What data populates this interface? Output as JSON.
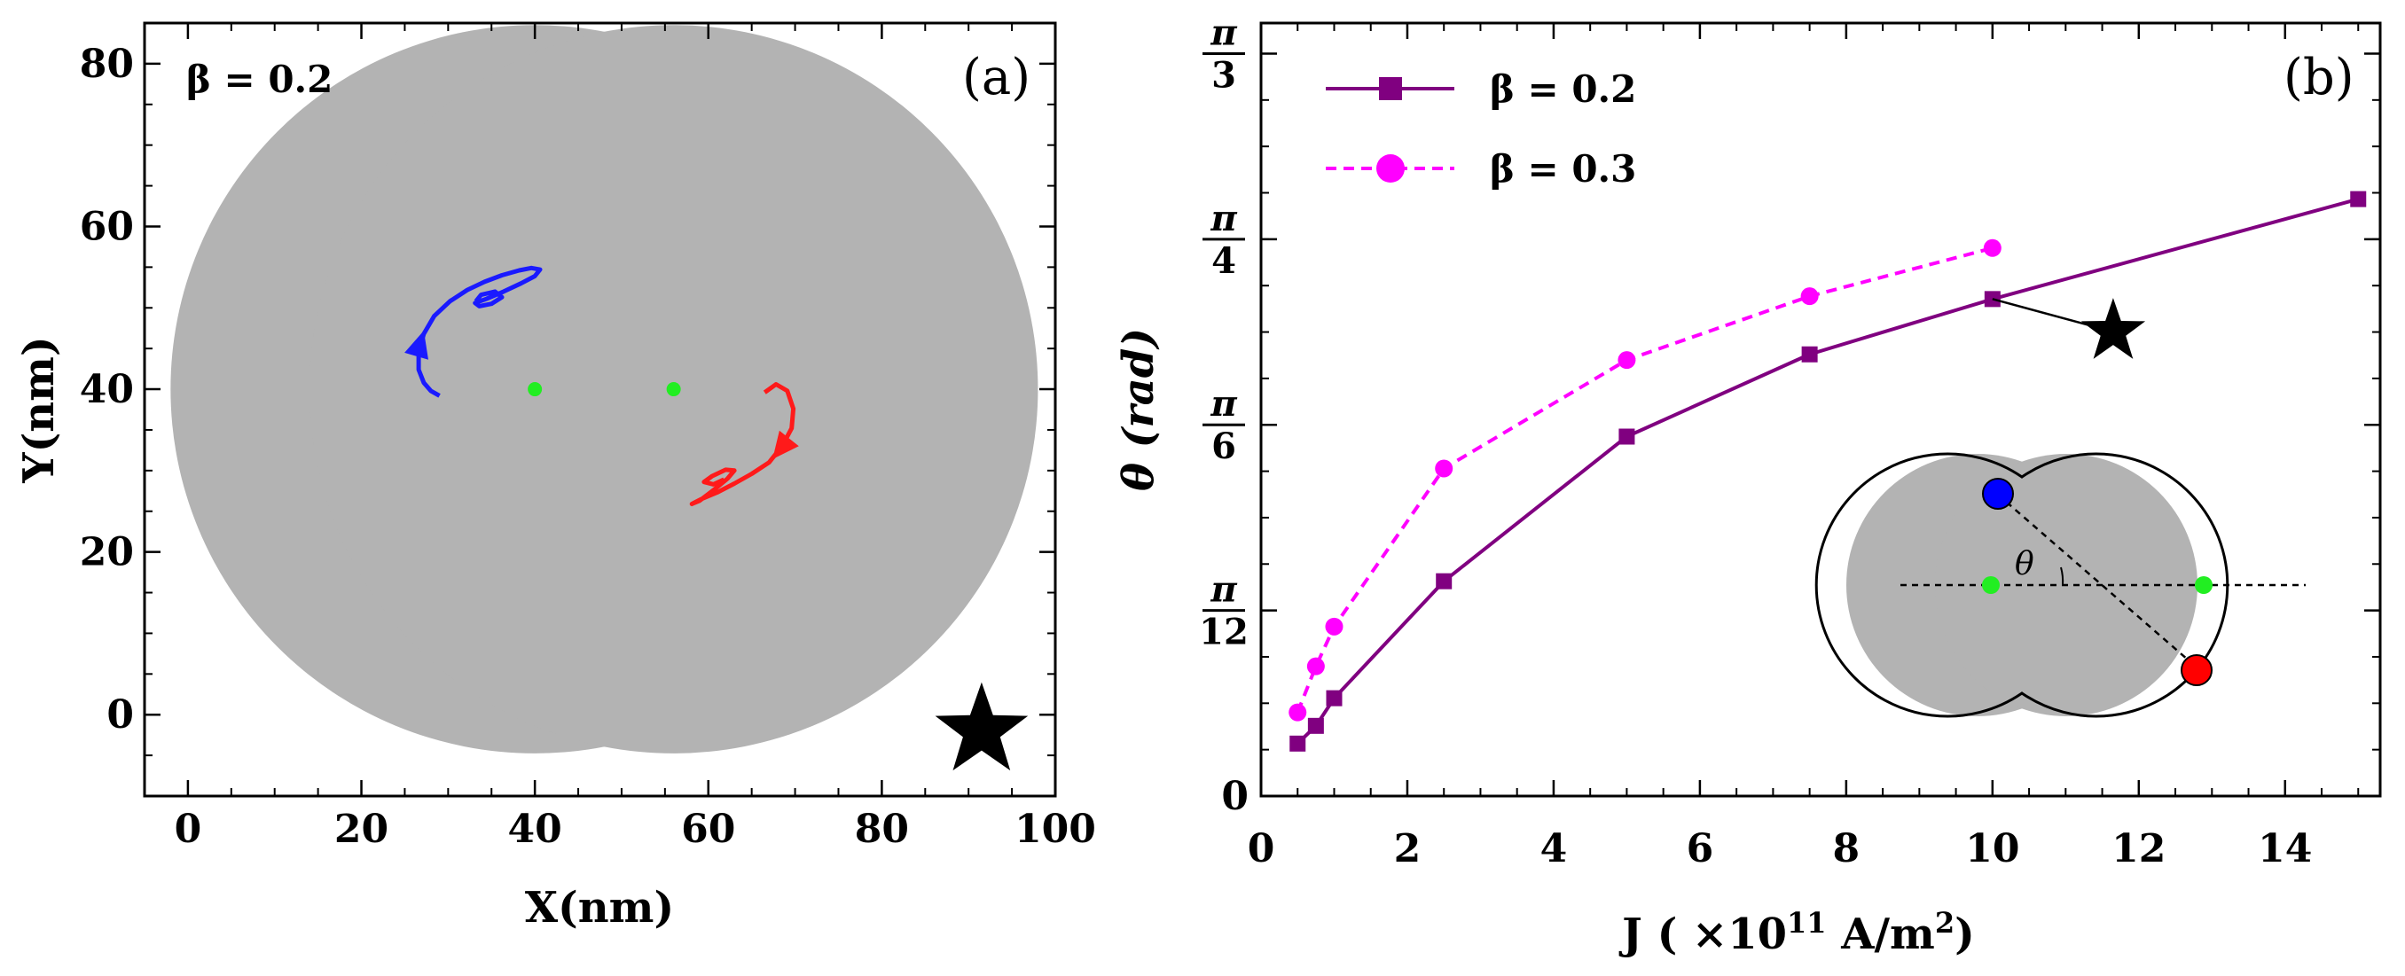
{
  "chart_data": [
    {
      "type": "scatter",
      "panel_label": "(a)",
      "annotation": "β = 0.2",
      "xlabel": "X(nm)",
      "ylabel": "Y(nm)",
      "xlim": [
        -5,
        100
      ],
      "ylim": [
        -10,
        85
      ],
      "xticks": [
        "0",
        "20",
        "40",
        "60",
        "80",
        "100"
      ],
      "yticks": [
        "0",
        "20",
        "40",
        "60",
        "80"
      ],
      "xtick_values": [
        0,
        20,
        40,
        60,
        80,
        100
      ],
      "ytick_values": [
        0,
        20,
        40,
        60,
        80
      ],
      "disks": [
        {
          "cx": 40,
          "cy": 40,
          "r": 42
        },
        {
          "cx": 56,
          "cy": 40,
          "r": 42
        }
      ],
      "pinning_centers": [
        {
          "x": 40,
          "y": 40
        },
        {
          "x": 56,
          "y": 40
        }
      ],
      "series": [
        {
          "name": "blue skyrmion trajectory",
          "color": "#1a1aff",
          "x": [
            29,
            28,
            27.2,
            26.6,
            26.6,
            27.2,
            28.4,
            30.2,
            32.2,
            34.2,
            36.2,
            38.2,
            39.6,
            40.6,
            40,
            38.4,
            36.4,
            34.4,
            33.1,
            33.6,
            35,
            36.2,
            35.4,
            33.8,
            33.2
          ],
          "y": [
            39.2,
            39.8,
            40.8,
            42.4,
            44.6,
            46.8,
            49,
            50.8,
            52.2,
            53.2,
            54,
            54.6,
            54.9,
            54.7,
            53.9,
            53,
            52,
            51.1,
            50.6,
            50.2,
            50.5,
            51.3,
            52,
            51.6,
            50.8
          ],
          "arrow_at": {
            "x": 27.2,
            "y": 47.2
          }
        },
        {
          "name": "red skyrmion trajectory",
          "color": "#ff1a1a",
          "x": [
            66.5,
            67.8,
            69.1,
            69.8,
            69.6,
            68.5,
            67,
            65,
            63,
            61,
            59.2,
            58.1,
            59,
            60.6,
            62.2,
            63,
            62,
            60.4,
            59.5,
            60.6,
            61.8
          ],
          "y": [
            39.6,
            40.6,
            39.8,
            37.6,
            35.2,
            33,
            31,
            29.6,
            28.4,
            27.3,
            26.5,
            25.9,
            26.3,
            27.6,
            29,
            30,
            30.1,
            29.3,
            28.6,
            28.3,
            28.9
          ],
          "arrow_at": {
            "x": 67.4,
            "y": 31.4
          }
        }
      ],
      "star_marker": {
        "x": 91.5,
        "y": -2
      }
    },
    {
      "type": "line",
      "panel_label": "(b)",
      "xlabel": "J ( ×10",
      "xlabel_exp": "11",
      "xlabel_unit": " A/m",
      "xlabel_unit_exp": "2",
      "xlabel_close": ")",
      "ylabel": "θ (rad)",
      "xlim": [
        0,
        15.3
      ],
      "ylim": [
        0,
        1.0903
      ],
      "xticks": [
        "0",
        "2",
        "4",
        "6",
        "8",
        "10",
        "12",
        "14"
      ],
      "xtick_values": [
        0,
        2,
        4,
        6,
        8,
        10,
        12,
        14
      ],
      "yticks": [
        {
          "value": 0,
          "label": "0"
        },
        {
          "value": 0.2618,
          "num": "π",
          "den": "12"
        },
        {
          "value": 0.5236,
          "num": "π",
          "den": "6"
        },
        {
          "value": 0.7854,
          "num": "π",
          "den": "4"
        },
        {
          "value": 1.0472,
          "num": "π",
          "den": "3"
        }
      ],
      "series": [
        {
          "name": "β = 0.2",
          "color": "#800080",
          "marker": "square",
          "line": "solid",
          "x": [
            0.5,
            0.75,
            1,
            2.5,
            5,
            7.5,
            10,
            15
          ],
          "y": [
            0.074,
            0.099,
            0.138,
            0.303,
            0.507,
            0.623,
            0.701,
            0.842
          ]
        },
        {
          "name": "β = 0.3",
          "color": "#ff00ff",
          "marker": "circle",
          "line": "dashed",
          "x": [
            0.5,
            0.75,
            1,
            2.5,
            5,
            7.5,
            10
          ],
          "y": [
            0.118,
            0.183,
            0.239,
            0.462,
            0.615,
            0.705,
            0.773
          ]
        }
      ],
      "star_annotation": {
        "point": {
          "x": 10,
          "y": 0.701
        },
        "star": {
          "x": 11.65,
          "y": 0.655
        }
      },
      "inset": {
        "angle_label": "θ",
        "blue_color": "#0000ff",
        "red_color": "#ff0000",
        "center_color": "#22ee22"
      }
    }
  ]
}
